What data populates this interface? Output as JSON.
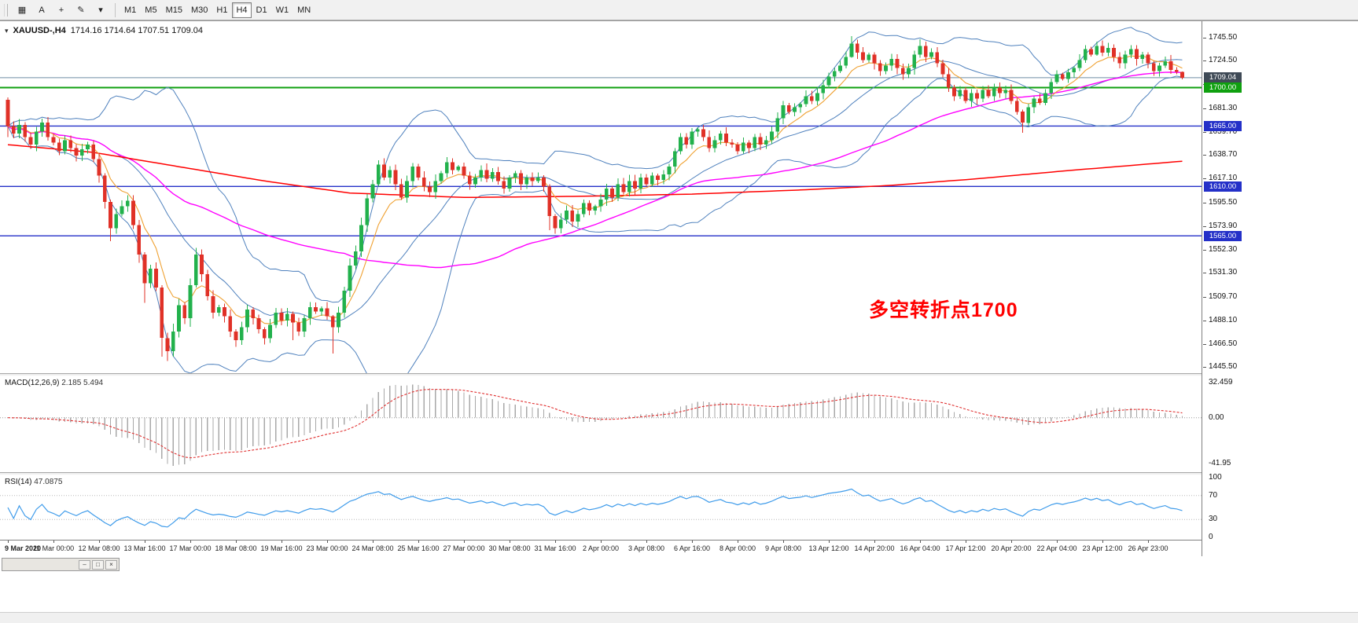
{
  "toolbar": {
    "icon_buttons": [
      {
        "name": "tile-windows-icon",
        "glyph": "▦"
      },
      {
        "name": "text-annotation-icon",
        "glyph": "A"
      },
      {
        "name": "crosshair-icon",
        "glyph": "+"
      },
      {
        "name": "line-studies-icon",
        "glyph": "✎"
      },
      {
        "name": "dropdown-caret-icon",
        "glyph": "▾"
      }
    ],
    "timeframes": [
      {
        "label": "M1"
      },
      {
        "label": "M5"
      },
      {
        "label": "M15"
      },
      {
        "label": "M30"
      },
      {
        "label": "H1"
      },
      {
        "label": "H4"
      },
      {
        "label": "D1"
      },
      {
        "label": "W1"
      },
      {
        "label": "MN"
      }
    ],
    "selected_timeframe": "H4"
  },
  "chart": {
    "symbol_tf": "XAUUSD-,H4",
    "ohlc": "1714.16 1714.64 1707.51 1709.04",
    "collapse_icon": "▾"
  },
  "annotation": {
    "text": "多空转折点1700",
    "color": "#ff0000"
  },
  "indicators": {
    "macd": {
      "label": "MACD(12,26,9)",
      "values": "2.185 5.494",
      "scale": [
        {
          "label": "32.459",
          "v": 32.459
        },
        {
          "label": "0.00",
          "v": 0
        },
        {
          "label": "-41.95",
          "v": -41.95
        }
      ]
    },
    "rsi": {
      "label": "RSI(14)",
      "values": "47.0875",
      "levels": [
        70,
        30
      ],
      "scale": [
        {
          "label": "100",
          "v": 100
        },
        {
          "label": "70",
          "v": 70
        },
        {
          "label": "30",
          "v": 30
        },
        {
          "label": "0",
          "v": 0
        }
      ]
    }
  },
  "price_scale": {
    "ticks": [
      {
        "label": "1745.50",
        "v": 1745.5
      },
      {
        "label": "1724.50",
        "v": 1724.5
      },
      {
        "label": "1702.90",
        "v": 1702.9
      },
      {
        "label": "1681.30",
        "v": 1681.3
      },
      {
        "label": "1659.70",
        "v": 1659.7
      },
      {
        "label": "1638.70",
        "v": 1638.7
      },
      {
        "label": "1617.10",
        "v": 1617.1
      },
      {
        "label": "1595.50",
        "v": 1595.5
      },
      {
        "label": "1573.90",
        "v": 1573.9
      },
      {
        "label": "1552.30",
        "v": 1552.3
      },
      {
        "label": "1531.30",
        "v": 1531.3
      },
      {
        "label": "1509.70",
        "v": 1509.7
      },
      {
        "label": "1488.10",
        "v": 1488.1
      },
      {
        "label": "1466.50",
        "v": 1466.5
      },
      {
        "label": "1445.50",
        "v": 1445.5
      }
    ],
    "tags": [
      {
        "label": "1709.04",
        "price": 1709.04,
        "bg": "#3f4a56"
      },
      {
        "label": "1700.00",
        "price": 1700.0,
        "bg": "#0fa00f"
      },
      {
        "label": "1665.00",
        "price": 1665.0,
        "bg": "#2430c8"
      },
      {
        "label": "1610.00",
        "price": 1610.0,
        "bg": "#2430c8"
      },
      {
        "label": "1565.00",
        "price": 1565.0,
        "bg": "#2430c8"
      }
    ]
  },
  "hlines": [
    {
      "price": 1709.04,
      "color": "#6d8ea4",
      "width": 1
    },
    {
      "price": 1700.0,
      "color": "#0fa00f",
      "width": 2
    },
    {
      "price": 1665.0,
      "color": "#2430c8",
      "width": 1.4
    },
    {
      "price": 1610.0,
      "color": "#2430c8",
      "width": 1.4
    },
    {
      "price": 1565.0,
      "color": "#2430c8",
      "width": 1.4
    }
  ],
  "time_axis": {
    "labels": [
      [
        "9 Mar 2020",
        0
      ],
      [
        "11 Mar 00:00",
        8
      ],
      [
        "12 Mar 08:00",
        16
      ],
      [
        "13 Mar 16:00",
        24
      ],
      [
        "17 Mar 00:00",
        32
      ],
      [
        "18 Mar 08:00",
        40
      ],
      [
        "19 Mar 16:00",
        48
      ],
      [
        "23 Mar 00:00",
        56
      ],
      [
        "24 Mar 08:00",
        64
      ],
      [
        "25 Mar 16:00",
        72
      ],
      [
        "27 Mar 00:00",
        80
      ],
      [
        "30 Mar 08:00",
        88
      ],
      [
        "31 Mar 16:00",
        96
      ],
      [
        "2 Apr 00:00",
        104
      ],
      [
        "3 Apr 08:00",
        112
      ],
      [
        "6 Apr 16:00",
        120
      ],
      [
        "8 Apr 00:00",
        128
      ],
      [
        "9 Apr 08:00",
        136
      ],
      [
        "13 Apr 12:00",
        144
      ],
      [
        "14 Apr 20:00",
        152
      ],
      [
        "16 Apr 04:00",
        160
      ],
      [
        "17 Apr 12:00",
        168
      ],
      [
        "20 Apr 20:00",
        176
      ],
      [
        "22 Apr 04:00",
        184
      ],
      [
        "23 Apr 12:00",
        192
      ],
      [
        "26 Apr 23:00",
        200
      ]
    ]
  },
  "colors": {
    "bull": "#22b14c",
    "bear": "#e03127",
    "bollinger": "#4f81bd",
    "ema_fast": "#efa132",
    "sma_mid": "#ff00ff",
    "sma_long": "#ff0000",
    "macd_hist": "#a8a8a8",
    "macd_signal": "#e03030",
    "rsi": "#3e9bea",
    "levels": "#b8b8b8"
  },
  "chart_data": {
    "type": "candlestick",
    "symbol": "XAUUSD-",
    "timeframe": "H4",
    "title": "XAUUSD-,H4 1714.16 1714.64 1707.51 1709.04",
    "price_range": [
      1440,
      1759
    ],
    "first_open": 1689,
    "seed": 11,
    "closes": [
      1665,
      1658,
      1666,
      1655,
      1648,
      1660,
      1668,
      1655,
      1650,
      1642,
      1652,
      1645,
      1638,
      1644,
      1648,
      1635,
      1620,
      1596,
      1572,
      1585,
      1592,
      1597,
      1575,
      1548,
      1522,
      1535,
      1518,
      1472,
      1460,
      1478,
      1502,
      1490,
      1520,
      1548,
      1530,
      1510,
      1495,
      1500,
      1492,
      1478,
      1470,
      1482,
      1498,
      1490,
      1480,
      1472,
      1484,
      1495,
      1488,
      1494,
      1486,
      1478,
      1490,
      1500,
      1496,
      1499,
      1492,
      1482,
      1495,
      1515,
      1538,
      1551,
      1575,
      1599,
      1612,
      1630,
      1618,
      1625,
      1612,
      1600,
      1615,
      1628,
      1618,
      1610,
      1605,
      1615,
      1622,
      1632,
      1625,
      1628,
      1620,
      1612,
      1618,
      1625,
      1617,
      1623,
      1615,
      1608,
      1618,
      1622,
      1612,
      1618,
      1615,
      1618,
      1610,
      1583,
      1572,
      1580,
      1588,
      1578,
      1585,
      1595,
      1588,
      1592,
      1598,
      1608,
      1600,
      1612,
      1605,
      1615,
      1608,
      1618,
      1612,
      1620,
      1616,
      1621,
      1628,
      1642,
      1655,
      1648,
      1660,
      1662,
      1655,
      1645,
      1652,
      1658,
      1650,
      1648,
      1642,
      1650,
      1645,
      1655,
      1648,
      1652,
      1660,
      1672,
      1684,
      1678,
      1682,
      1685,
      1692,
      1688,
      1695,
      1702,
      1710,
      1715,
      1720,
      1728,
      1740,
      1732,
      1725,
      1730,
      1722,
      1715,
      1720,
      1726,
      1718,
      1712,
      1718,
      1730,
      1738,
      1728,
      1732,
      1722,
      1712,
      1700,
      1692,
      1698,
      1688,
      1695,
      1690,
      1698,
      1692,
      1700,
      1695,
      1698,
      1688,
      1678,
      1668,
      1682,
      1690,
      1686,
      1695,
      1705,
      1712,
      1708,
      1714,
      1718,
      1725,
      1735,
      1730,
      1738,
      1732,
      1736,
      1728,
      1722,
      1730,
      1735,
      1726,
      1730,
      1722,
      1715,
      1720,
      1724,
      1716,
      1714.16,
      1709.04
    ],
    "wick_overrides": {
      "0": [
        1691,
        1655
      ],
      "17": [
        1622,
        1590
      ],
      "18": [
        1598,
        1560
      ],
      "24": [
        1550,
        1504
      ],
      "27": [
        1520,
        1455
      ],
      "28": [
        1477,
        1451
      ],
      "33": [
        1554,
        1518
      ],
      "40": [
        1480,
        1464
      ],
      "45": [
        1482,
        1466
      ],
      "50": [
        1496,
        1470
      ],
      "57": [
        1493,
        1458
      ],
      "65": [
        1634,
        1610
      ],
      "95": [
        1612,
        1570
      ],
      "96": [
        1585,
        1567
      ],
      "148": [
        1747,
        1727
      ],
      "160": [
        1744,
        1727
      ],
      "178": [
        1680,
        1659
      ],
      "191": [
        1742,
        1729
      ],
      "206": [
        1714.64,
        1707.51
      ]
    },
    "red_ma_anchors": [
      [
        0,
        1648
      ],
      [
        15,
        1641
      ],
      [
        30,
        1628
      ],
      [
        45,
        1615
      ],
      [
        60,
        1604
      ],
      [
        80,
        1600
      ],
      [
        100,
        1601
      ],
      [
        120,
        1603
      ],
      [
        140,
        1607
      ],
      [
        155,
        1611
      ],
      [
        170,
        1617
      ],
      [
        185,
        1624
      ],
      [
        206,
        1633
      ]
    ]
  }
}
